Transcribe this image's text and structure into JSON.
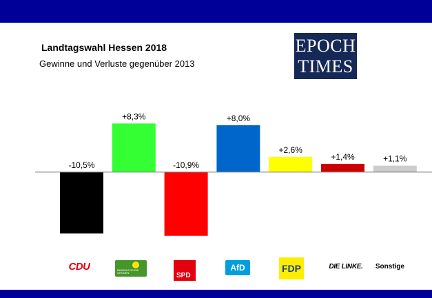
{
  "header": {
    "band_color": "#000099"
  },
  "logo": {
    "line1": "EPOCH",
    "line2": "TIMES",
    "background": "#152856"
  },
  "chart_data": {
    "type": "bar",
    "title": "Landtagswahl Hessen 2018",
    "subtitle": "Gewinne und Verluste gegenüber 2013",
    "categories": [
      "CDU",
      "GRÜNE",
      "SPD",
      "AfD",
      "FDP",
      "DIE LINKE.",
      "Sonstige"
    ],
    "values": [
      -10.5,
      8.3,
      -10.9,
      8.0,
      2.6,
      1.4,
      1.1
    ],
    "value_labels": [
      "-10,5%",
      "+8,3%",
      "-10,9%",
      "+8,0%",
      "+2,6%",
      "+1,4%",
      "+1,1%"
    ],
    "colors": [
      "#000000",
      "#33ff33",
      "#ff0000",
      "#0066cc",
      "#ffff00",
      "#cc0000",
      "#cccccc"
    ],
    "ylim": [
      -11.5,
      9
    ],
    "grid": false,
    "legend": "none"
  },
  "party_logos": {
    "cdu": {
      "text": "CDU",
      "color": "#e3000f"
    },
    "gruene": {
      "text": "BÜNDNIS 90 DIE GRÜNEN",
      "color": "#46962b"
    },
    "spd": {
      "text": "SPD",
      "color": "#e3000f"
    },
    "afd": {
      "text": "AfD",
      "color": "#009ee0"
    },
    "fdp": {
      "text": "FDP",
      "color": "#ffed00"
    },
    "linke": {
      "text": "DIE LINKE."
    },
    "sonstige": {
      "text": "Sonstige"
    }
  }
}
